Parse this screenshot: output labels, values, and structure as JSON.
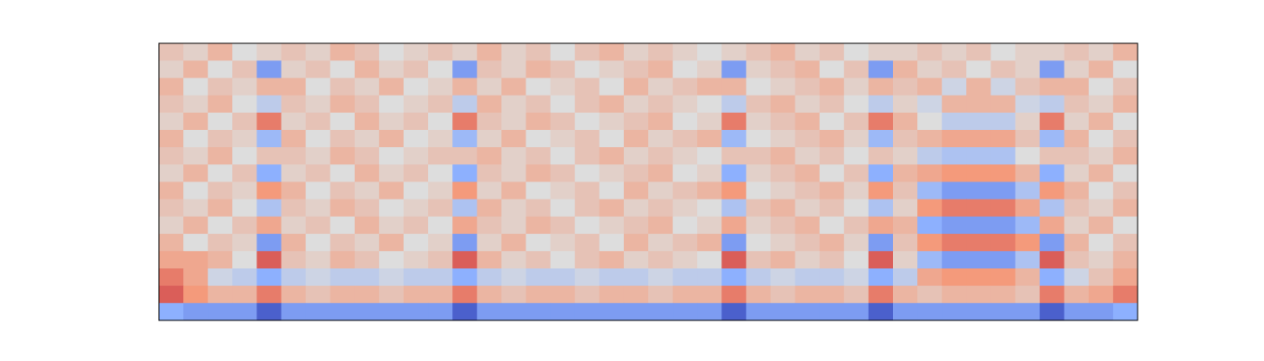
{
  "chart_data": {
    "type": "heatmap",
    "colormap": "coolwarm",
    "zlim": [
      -1,
      1
    ],
    "z": [
      [
        0.2,
        0.1,
        0.3,
        0.0,
        0.1,
        0.2,
        0.1,
        0.3,
        0.2,
        0.0,
        0.1,
        0.2,
        0.1,
        0.3,
        0.1,
        0.2,
        0.0,
        0.2,
        0.3,
        0.1,
        0.2,
        0.1,
        0.0,
        0.1,
        0.2,
        0.3,
        0.1,
        0.2,
        0.0,
        0.1,
        0.1,
        0.2,
        0.1,
        0.2,
        0.0,
        0.1,
        0.1,
        0.2,
        0.1,
        0.3
      ],
      [
        0.1,
        0.3,
        0.0,
        0.2,
        -0.6,
        0.1,
        0.2,
        0.0,
        0.3,
        0.1,
        0.2,
        0.0,
        -0.6,
        0.2,
        0.1,
        0.3,
        0.2,
        0.0,
        0.1,
        0.2,
        0.3,
        0.0,
        0.1,
        -0.6,
        0.1,
        0.2,
        0.3,
        0.0,
        0.2,
        -0.6,
        0.3,
        0.1,
        0.2,
        0.0,
        0.2,
        0.1,
        -0.6,
        0.1,
        0.3,
        0.0
      ],
      [
        0.3,
        0.0,
        0.2,
        0.1,
        0.3,
        0.3,
        0.0,
        0.2,
        0.1,
        0.3,
        0.0,
        0.1,
        0.3,
        0.1,
        0.3,
        0.0,
        0.1,
        0.2,
        0.0,
        0.3,
        0.1,
        0.2,
        0.3,
        0.3,
        0.0,
        0.1,
        0.2,
        0.3,
        0.1,
        0.3,
        0.2,
        0.3,
        -0.1,
        0.3,
        -0.1,
        0.2,
        0.3,
        0.3,
        0.0,
        0.2
      ],
      [
        0.2,
        0.1,
        0.3,
        0.0,
        -0.2,
        0.2,
        0.1,
        0.3,
        0.2,
        0.0,
        0.1,
        0.2,
        -0.2,
        0.3,
        0.1,
        0.2,
        0.0,
        0.2,
        0.3,
        0.1,
        0.2,
        0.1,
        0.0,
        -0.2,
        0.2,
        0.3,
        0.1,
        0.2,
        0.0,
        -0.2,
        0.1,
        -0.1,
        0.3,
        0.3,
        0.3,
        -0.1,
        -0.2,
        0.2,
        0.1,
        0.3
      ],
      [
        0.1,
        0.3,
        0.0,
        0.2,
        0.6,
        0.1,
        0.2,
        0.0,
        0.3,
        0.1,
        0.2,
        0.0,
        0.6,
        0.2,
        0.1,
        0.3,
        0.2,
        0.0,
        0.1,
        0.2,
        0.3,
        0.0,
        0.1,
        0.6,
        0.1,
        0.2,
        0.3,
        0.0,
        0.2,
        0.6,
        0.3,
        0.0,
        -0.2,
        -0.2,
        -0.2,
        0.1,
        0.6,
        0.1,
        0.3,
        0.0
      ],
      [
        0.3,
        0.0,
        0.2,
        0.1,
        -0.4,
        0.3,
        0.0,
        0.2,
        0.1,
        0.3,
        0.0,
        0.1,
        -0.4,
        0.1,
        0.3,
        0.0,
        0.1,
        0.2,
        0.0,
        0.3,
        0.1,
        0.2,
        0.3,
        -0.4,
        0.0,
        0.1,
        0.2,
        0.3,
        0.1,
        -0.4,
        0.2,
        0.3,
        0.4,
        0.4,
        0.4,
        0.2,
        -0.4,
        0.3,
        0.0,
        0.2
      ],
      [
        0.2,
        0.1,
        0.3,
        0.0,
        0.2,
        0.2,
        0.1,
        0.3,
        0.2,
        0.0,
        0.1,
        0.2,
        0.2,
        0.3,
        0.1,
        0.2,
        0.0,
        0.2,
        0.3,
        0.1,
        0.2,
        0.1,
        0.0,
        0.2,
        0.2,
        0.3,
        0.1,
        0.2,
        0.0,
        0.2,
        0.1,
        -0.2,
        -0.3,
        -0.3,
        -0.3,
        0.0,
        0.2,
        0.2,
        0.1,
        0.3
      ],
      [
        0.1,
        0.3,
        0.0,
        0.2,
        -0.5,
        0.1,
        0.2,
        0.0,
        0.3,
        0.1,
        0.2,
        0.0,
        -0.5,
        0.2,
        0.1,
        0.3,
        0.2,
        0.0,
        0.1,
        0.2,
        0.3,
        0.0,
        0.1,
        -0.5,
        0.1,
        0.2,
        0.3,
        0.0,
        0.2,
        -0.5,
        0.3,
        0.4,
        0.5,
        0.5,
        0.5,
        0.3,
        -0.5,
        0.1,
        0.3,
        0.0
      ],
      [
        0.3,
        0.0,
        0.2,
        0.1,
        0.5,
        0.3,
        0.0,
        0.2,
        0.1,
        0.3,
        0.0,
        0.1,
        0.5,
        0.1,
        0.3,
        0.0,
        0.1,
        0.2,
        0.0,
        0.3,
        0.1,
        0.2,
        0.3,
        0.5,
        0.0,
        0.1,
        0.2,
        0.3,
        0.1,
        0.5,
        0.2,
        -0.4,
        -0.6,
        -0.6,
        -0.6,
        -0.3,
        0.5,
        0.3,
        0.0,
        0.2
      ],
      [
        0.2,
        0.1,
        0.3,
        0.0,
        -0.3,
        0.2,
        0.1,
        0.3,
        0.2,
        0.0,
        0.1,
        0.2,
        -0.3,
        0.3,
        0.1,
        0.2,
        0.0,
        0.2,
        0.3,
        0.1,
        0.2,
        0.1,
        0.0,
        -0.3,
        0.2,
        0.3,
        0.1,
        0.2,
        0.0,
        -0.3,
        0.1,
        0.5,
        0.6,
        0.6,
        0.6,
        0.4,
        -0.3,
        0.2,
        0.1,
        0.3
      ],
      [
        0.1,
        0.3,
        0.0,
        0.2,
        0.4,
        0.1,
        0.2,
        0.0,
        0.3,
        0.1,
        0.2,
        0.0,
        0.4,
        0.2,
        0.1,
        0.3,
        0.2,
        0.0,
        0.1,
        0.2,
        0.3,
        0.0,
        0.1,
        0.4,
        0.1,
        0.2,
        0.3,
        0.0,
        0.2,
        0.4,
        0.3,
        -0.5,
        -0.6,
        -0.6,
        -0.6,
        -0.4,
        0.4,
        0.1,
        0.3,
        0.0
      ],
      [
        0.3,
        0.0,
        0.2,
        0.1,
        -0.6,
        0.3,
        0.0,
        0.2,
        0.1,
        0.3,
        0.0,
        0.1,
        -0.6,
        0.1,
        0.3,
        0.0,
        0.1,
        0.2,
        0.0,
        0.3,
        0.1,
        0.2,
        0.3,
        -0.6,
        0.0,
        0.1,
        0.2,
        0.3,
        0.1,
        -0.6,
        0.2,
        0.5,
        0.6,
        0.6,
        0.6,
        0.5,
        -0.6,
        0.3,
        0.0,
        0.2
      ],
      [
        0.4,
        0.4,
        0.3,
        0.0,
        0.7,
        0.2,
        0.1,
        0.3,
        0.2,
        0.0,
        0.1,
        0.2,
        0.7,
        0.3,
        0.1,
        0.2,
        0.0,
        0.2,
        0.3,
        0.1,
        0.2,
        0.1,
        0.0,
        0.7,
        0.2,
        0.3,
        0.1,
        0.2,
        0.0,
        0.7,
        0.1,
        -0.4,
        -0.6,
        -0.6,
        -0.6,
        -0.3,
        0.7,
        0.2,
        0.1,
        0.3
      ],
      [
        0.6,
        0.4,
        -0.1,
        -0.2,
        -0.5,
        -0.2,
        -0.1,
        -0.2,
        -0.2,
        -0.1,
        -0.2,
        -0.2,
        -0.5,
        -0.2,
        -0.1,
        -0.2,
        -0.2,
        -0.1,
        -0.2,
        -0.2,
        -0.1,
        -0.2,
        -0.2,
        -0.5,
        -0.2,
        -0.1,
        -0.2,
        -0.2,
        -0.1,
        -0.5,
        -0.2,
        0.4,
        0.5,
        0.5,
        0.5,
        0.3,
        -0.5,
        -0.1,
        0.2,
        0.4
      ],
      [
        0.7,
        0.5,
        0.3,
        0.3,
        0.6,
        0.3,
        0.2,
        0.3,
        0.3,
        0.2,
        0.3,
        0.3,
        0.6,
        0.3,
        0.2,
        0.3,
        0.3,
        0.2,
        0.3,
        0.3,
        0.2,
        0.3,
        0.3,
        0.6,
        0.3,
        0.2,
        0.3,
        0.3,
        0.2,
        0.6,
        0.3,
        0.2,
        0.3,
        0.3,
        0.3,
        0.2,
        0.6,
        0.3,
        0.4,
        0.6
      ],
      [
        -0.5,
        -0.6,
        -0.6,
        -0.6,
        -0.9,
        -0.6,
        -0.6,
        -0.6,
        -0.6,
        -0.6,
        -0.6,
        -0.6,
        -0.9,
        -0.6,
        -0.6,
        -0.6,
        -0.6,
        -0.6,
        -0.6,
        -0.6,
        -0.6,
        -0.6,
        -0.6,
        -0.9,
        -0.6,
        -0.6,
        -0.6,
        -0.6,
        -0.6,
        -0.9,
        -0.6,
        -0.6,
        -0.6,
        -0.6,
        -0.6,
        -0.6,
        -0.9,
        -0.6,
        -0.6,
        -0.5
      ]
    ]
  }
}
